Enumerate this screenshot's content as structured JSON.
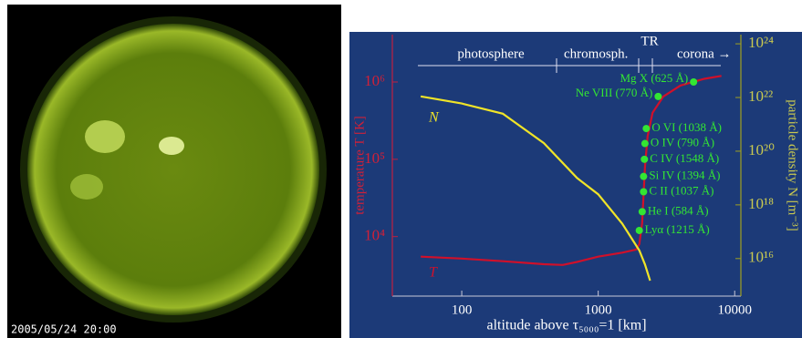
{
  "image": {
    "timestamp": "2005/05/24 20:00"
  },
  "chart_data": {
    "type": "line",
    "x_label": "altitude above τ₅₀₀₀=1  [km]",
    "y_label": "temperature T [K]",
    "y2_label": "particle density N [m⁻³]",
    "xlog": true,
    "ylog": true,
    "y2log": true,
    "xlim": [
      31,
      11100
    ],
    "ylim": [
      1700,
      4100000
    ],
    "y2lim": [
      400000000000000.0,
      2.2e+24
    ],
    "xticks": [
      100,
      1000,
      10000
    ],
    "yticks": [
      {
        "value": 10000,
        "label": "10⁴"
      },
      {
        "value": 100000,
        "label": "10⁵"
      },
      {
        "value": 1000000,
        "label": "10⁶"
      }
    ],
    "y2ticks": [
      {
        "value": 1e+16,
        "label": "10¹⁶"
      },
      {
        "value": 1e+18,
        "label": "10¹⁸"
      },
      {
        "value": 1e+20,
        "label": "10²⁰"
      },
      {
        "value": 1e+22,
        "label": "10²²"
      },
      {
        "value": 1e+24,
        "label": "10²⁴"
      }
    ],
    "regions": [
      "photosphere",
      "chromosph.",
      "TR",
      "corona →"
    ],
    "series": [
      {
        "name": "T",
        "color": "#d0102a",
        "x": [
          50,
          100,
          200,
          400,
          550,
          700,
          1000,
          1500,
          1900,
          2000,
          2100,
          2200,
          2300,
          2500,
          3000,
          4000,
          6000,
          8000
        ],
        "values": [
          5500,
          5200,
          4800,
          4400,
          4300,
          4700,
          5500,
          6200,
          6800,
          8000,
          15000,
          80000,
          200000,
          400000,
          650000,
          900000,
          1100000,
          1200000
        ]
      },
      {
        "name": "N",
        "color": "#f0e428",
        "axis": "y2",
        "x": [
          50,
          100,
          200,
          400,
          700,
          1000,
          1500,
          2000,
          2200,
          2400
        ],
        "values": [
          1.1e+22,
          6e+21,
          2.5e+21,
          2e+20,
          1e+19,
          2.5e+18,
          2e+17,
          2e+16,
          6000000000000000.0,
          1500000000000000.0
        ]
      }
    ],
    "points": [
      {
        "label": "Lyα (1215 Å)",
        "x": 2000,
        "T": 12000
      },
      {
        "label": "He I (584 Å)",
        "x": 2100,
        "T": 21000
      },
      {
        "label": "C II (1037 Å)",
        "x": 2150,
        "T": 38000
      },
      {
        "label": "Si IV (1394 Å)",
        "x": 2150,
        "T": 60000
      },
      {
        "label": "C IV (1548 Å)",
        "x": 2180,
        "T": 100000
      },
      {
        "label": "O IV (790 Å)",
        "x": 2200,
        "T": 160000
      },
      {
        "label": "O VI (1038 Å)",
        "x": 2250,
        "T": 250000
      },
      {
        "label": "Ne VIII (770 Å)",
        "x": 2750,
        "T": 650000
      },
      {
        "label": "Mg X (625 Å)",
        "x": 5000,
        "T": 1000000
      }
    ],
    "point_color": "#33e633"
  }
}
